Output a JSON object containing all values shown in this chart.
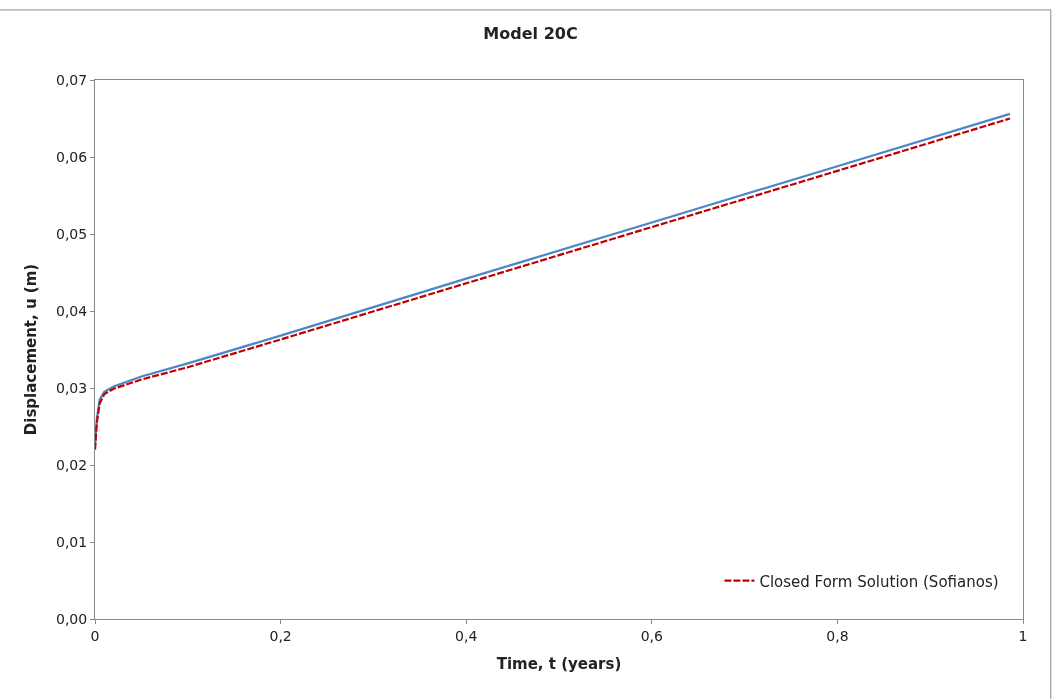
{
  "chart_data": {
    "type": "line",
    "title": "Model 20C",
    "xlabel": "Time, t (years)",
    "ylabel": "Displacement, u (m)",
    "xlim": [
      0,
      1
    ],
    "ylim": [
      0,
      0.07
    ],
    "xticks": [
      {
        "value": 0,
        "label": "0"
      },
      {
        "value": 0.2,
        "label": "0,2"
      },
      {
        "value": 0.4,
        "label": "0,4"
      },
      {
        "value": 0.6,
        "label": "0,6"
      },
      {
        "value": 0.8,
        "label": "0,8"
      },
      {
        "value": 1,
        "label": "1"
      }
    ],
    "yticks": [
      {
        "value": 0,
        "label": "0,00"
      },
      {
        "value": 0.01,
        "label": "0,01"
      },
      {
        "value": 0.02,
        "label": "0,02"
      },
      {
        "value": 0.03,
        "label": "0,03"
      },
      {
        "value": 0.04,
        "label": "0,04"
      },
      {
        "value": 0.05,
        "label": "0,05"
      },
      {
        "value": 0.06,
        "label": "0,06"
      },
      {
        "value": 0.07,
        "label": "0,07"
      }
    ],
    "legend": "bottom right",
    "marker": "none",
    "x": [
      0,
      0.002,
      0.005,
      0.01,
      0.02,
      0.05,
      0.1,
      0.2,
      0.4,
      0.6,
      0.8,
      0.986
    ],
    "series": [
      {
        "color": "#4a86c8",
        "line_style": "solid",
        "values": [
          0.0225,
          0.026,
          0.0285,
          0.0295,
          0.0302,
          0.0315,
          0.0332,
          0.0368,
          0.0442,
          0.0515,
          0.0588,
          0.0656
        ]
      },
      {
        "name": "Closed Form Solution (Sofianos)",
        "color": "#c00000",
        "line_style": "dashed",
        "values": [
          0.022,
          0.0255,
          0.028,
          0.0292,
          0.0299,
          0.0311,
          0.0327,
          0.0363,
          0.0436,
          0.0509,
          0.0582,
          0.065
        ]
      }
    ]
  }
}
